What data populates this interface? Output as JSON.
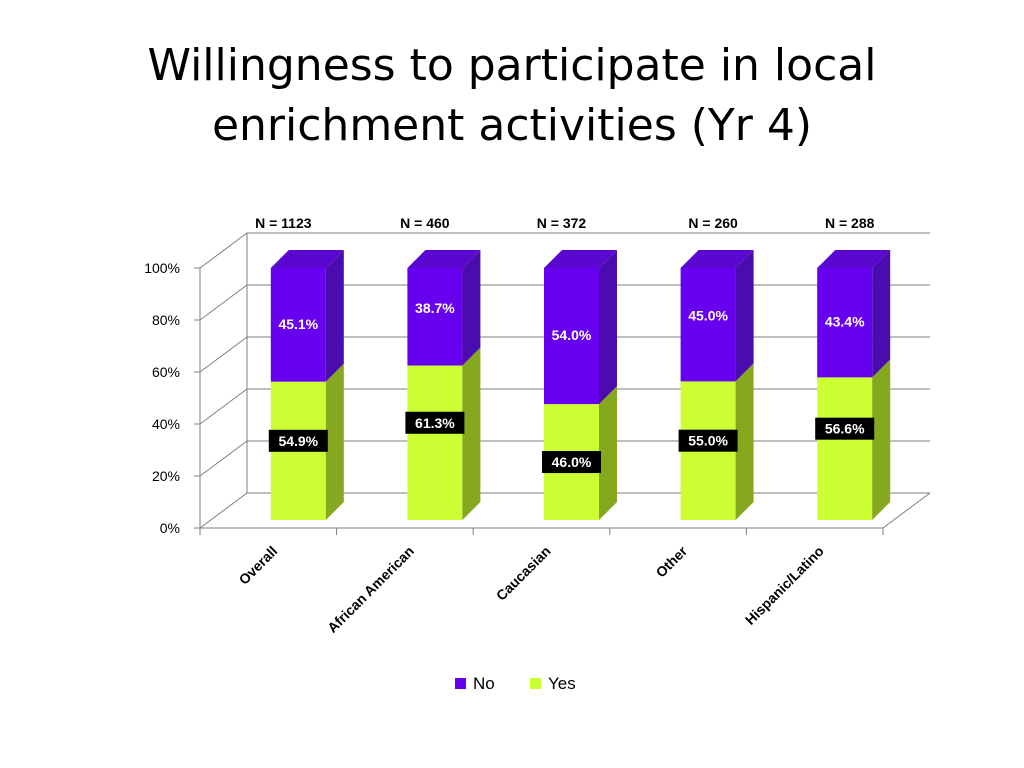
{
  "slide": {
    "title_line1": "Willingness to participate in local",
    "title_line2": "enrichment activities (Yr 4)"
  },
  "chart_data": {
    "type": "bar",
    "stacked": true,
    "three_d": true,
    "categories": [
      "Overall",
      "African American",
      "Caucasian",
      "Other",
      "Hispanic/Latino"
    ],
    "sample_sizes": [
      "N = 1123",
      "N = 460",
      "N = 372",
      "N = 260",
      "N = 288"
    ],
    "series": [
      {
        "name": "Yes",
        "color": "#ccff33",
        "side_color": "#86a81e",
        "values": [
          54.9,
          61.3,
          46.0,
          55.0,
          56.6
        ],
        "labels": [
          "54.9%",
          "61.3%",
          "46.0%",
          "55.0%",
          "56.6%"
        ]
      },
      {
        "name": "No",
        "color": "#6600ee",
        "side_color": "#4a0cae",
        "values": [
          45.1,
          38.7,
          54.0,
          45.0,
          43.4
        ],
        "labels": [
          "45.1%",
          "38.7%",
          "54.0%",
          "45.0%",
          "43.4%"
        ]
      }
    ],
    "yticks": [
      "0%",
      "20%",
      "40%",
      "60%",
      "80%",
      "100%"
    ],
    "ylim": [
      0,
      100
    ],
    "grid": true,
    "legend": {
      "position": "bottom",
      "entries": [
        "No",
        "Yes"
      ]
    }
  }
}
